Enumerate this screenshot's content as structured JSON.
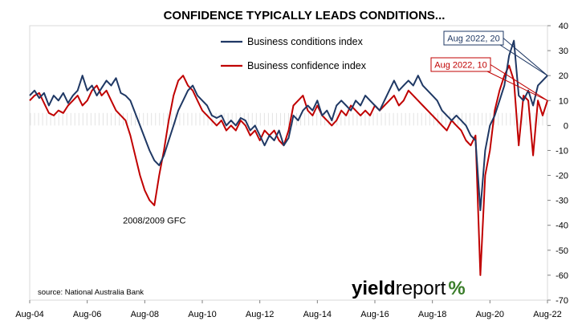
{
  "chart_data": {
    "type": "line",
    "title": "CONFIDENCE TYPICALLY LEADS CONDITIONS...",
    "xlabel": "",
    "ylabel": "",
    "x_tick_labels": [
      "Aug-04",
      "Aug-06",
      "Aug-08",
      "Aug-10",
      "Aug-12",
      "Aug-14",
      "Aug-16",
      "Aug-18",
      "Aug-20",
      "Aug-22"
    ],
    "y_tick_labels": [
      "40",
      "30",
      "20",
      "10",
      "0",
      "-10",
      "-20",
      "-30",
      "-40",
      "-50",
      "-60",
      "-70"
    ],
    "ylim": [
      -70,
      40
    ],
    "xlim": [
      "2004-08",
      "2022-08"
    ],
    "grid": false,
    "legend_position": "top-center",
    "series": [
      {
        "name": "Business conditions index",
        "color": "#1f3864",
        "points": [
          [
            "2004-08",
            12
          ],
          [
            "2004-10",
            14
          ],
          [
            "2004-12",
            11
          ],
          [
            "2005-02",
            13
          ],
          [
            "2005-04",
            8
          ],
          [
            "2005-06",
            12
          ],
          [
            "2005-08",
            10
          ],
          [
            "2005-10",
            13
          ],
          [
            "2005-12",
            9
          ],
          [
            "2006-02",
            12
          ],
          [
            "2006-04",
            14
          ],
          [
            "2006-06",
            20
          ],
          [
            "2006-08",
            14
          ],
          [
            "2006-10",
            16
          ],
          [
            "2006-12",
            12
          ],
          [
            "2007-02",
            15
          ],
          [
            "2007-04",
            18
          ],
          [
            "2007-06",
            16
          ],
          [
            "2007-08",
            19
          ],
          [
            "2007-10",
            13
          ],
          [
            "2007-12",
            12
          ],
          [
            "2008-02",
            10
          ],
          [
            "2008-04",
            5
          ],
          [
            "2008-06",
            0
          ],
          [
            "2008-08",
            -5
          ],
          [
            "2008-10",
            -10
          ],
          [
            "2008-12",
            -14
          ],
          [
            "2009-02",
            -16
          ],
          [
            "2009-04",
            -12
          ],
          [
            "2009-06",
            -6
          ],
          [
            "2009-08",
            0
          ],
          [
            "2009-10",
            6
          ],
          [
            "2009-12",
            10
          ],
          [
            "2010-02",
            14
          ],
          [
            "2010-04",
            16
          ],
          [
            "2010-06",
            12
          ],
          [
            "2010-08",
            10
          ],
          [
            "2010-10",
            8
          ],
          [
            "2010-12",
            4
          ],
          [
            "2011-02",
            3
          ],
          [
            "2011-04",
            4
          ],
          [
            "2011-06",
            0
          ],
          [
            "2011-08",
            2
          ],
          [
            "2011-10",
            0
          ],
          [
            "2011-12",
            3
          ],
          [
            "2012-02",
            2
          ],
          [
            "2012-04",
            -2
          ],
          [
            "2012-06",
            0
          ],
          [
            "2012-08",
            -4
          ],
          [
            "2012-10",
            -8
          ],
          [
            "2012-12",
            -4
          ],
          [
            "2013-02",
            -6
          ],
          [
            "2013-04",
            -2
          ],
          [
            "2013-06",
            -8
          ],
          [
            "2013-08",
            -5
          ],
          [
            "2013-10",
            4
          ],
          [
            "2013-12",
            2
          ],
          [
            "2014-02",
            6
          ],
          [
            "2014-04",
            8
          ],
          [
            "2014-06",
            6
          ],
          [
            "2014-08",
            10
          ],
          [
            "2014-10",
            4
          ],
          [
            "2014-12",
            6
          ],
          [
            "2015-02",
            2
          ],
          [
            "2015-04",
            8
          ],
          [
            "2015-06",
            10
          ],
          [
            "2015-08",
            8
          ],
          [
            "2015-10",
            6
          ],
          [
            "2015-12",
            10
          ],
          [
            "2016-02",
            8
          ],
          [
            "2016-04",
            12
          ],
          [
            "2016-06",
            10
          ],
          [
            "2016-08",
            8
          ],
          [
            "2016-10",
            6
          ],
          [
            "2016-12",
            10
          ],
          [
            "2017-02",
            14
          ],
          [
            "2017-04",
            18
          ],
          [
            "2017-06",
            14
          ],
          [
            "2017-08",
            16
          ],
          [
            "2017-10",
            18
          ],
          [
            "2017-12",
            16
          ],
          [
            "2018-02",
            20
          ],
          [
            "2018-04",
            16
          ],
          [
            "2018-06",
            14
          ],
          [
            "2018-08",
            12
          ],
          [
            "2018-10",
            10
          ],
          [
            "2018-12",
            6
          ],
          [
            "2019-02",
            4
          ],
          [
            "2019-04",
            2
          ],
          [
            "2019-06",
            4
          ],
          [
            "2019-08",
            2
          ],
          [
            "2019-10",
            0
          ],
          [
            "2019-12",
            -4
          ],
          [
            "2020-02",
            -6
          ],
          [
            "2020-04",
            -34
          ],
          [
            "2020-06",
            -10
          ],
          [
            "2020-08",
            0
          ],
          [
            "2020-10",
            4
          ],
          [
            "2020-12",
            10
          ],
          [
            "2021-02",
            16
          ],
          [
            "2021-04",
            28
          ],
          [
            "2021-06",
            34
          ],
          [
            "2021-08",
            12
          ],
          [
            "2021-10",
            10
          ],
          [
            "2021-12",
            14
          ],
          [
            "2022-02",
            8
          ],
          [
            "2022-04",
            16
          ],
          [
            "2022-06",
            18
          ],
          [
            "2022-08",
            20
          ]
        ]
      },
      {
        "name": "Business confidence index",
        "color": "#c00000",
        "points": [
          [
            "2004-08",
            10
          ],
          [
            "2004-10",
            12
          ],
          [
            "2004-12",
            13
          ],
          [
            "2005-02",
            9
          ],
          [
            "2005-04",
            5
          ],
          [
            "2005-06",
            4
          ],
          [
            "2005-08",
            6
          ],
          [
            "2005-10",
            5
          ],
          [
            "2005-12",
            8
          ],
          [
            "2006-02",
            10
          ],
          [
            "2006-04",
            12
          ],
          [
            "2006-06",
            8
          ],
          [
            "2006-08",
            10
          ],
          [
            "2006-10",
            14
          ],
          [
            "2006-12",
            16
          ],
          [
            "2007-02",
            12
          ],
          [
            "2007-04",
            14
          ],
          [
            "2007-06",
            10
          ],
          [
            "2007-08",
            6
          ],
          [
            "2007-10",
            4
          ],
          [
            "2007-12",
            2
          ],
          [
            "2008-02",
            -4
          ],
          [
            "2008-04",
            -12
          ],
          [
            "2008-06",
            -20
          ],
          [
            "2008-08",
            -26
          ],
          [
            "2008-10",
            -30
          ],
          [
            "2008-12",
            -32
          ],
          [
            "2009-02",
            -20
          ],
          [
            "2009-04",
            -10
          ],
          [
            "2009-06",
            2
          ],
          [
            "2009-08",
            12
          ],
          [
            "2009-10",
            18
          ],
          [
            "2009-12",
            20
          ],
          [
            "2010-02",
            16
          ],
          [
            "2010-04",
            14
          ],
          [
            "2010-06",
            10
          ],
          [
            "2010-08",
            6
          ],
          [
            "2010-10",
            4
          ],
          [
            "2010-12",
            2
          ],
          [
            "2011-02",
            0
          ],
          [
            "2011-04",
            2
          ],
          [
            "2011-06",
            -2
          ],
          [
            "2011-08",
            0
          ],
          [
            "2011-10",
            -2
          ],
          [
            "2011-12",
            2
          ],
          [
            "2012-02",
            0
          ],
          [
            "2012-04",
            -4
          ],
          [
            "2012-06",
            -2
          ],
          [
            "2012-08",
            -6
          ],
          [
            "2012-10",
            -2
          ],
          [
            "2012-12",
            -4
          ],
          [
            "2013-02",
            -2
          ],
          [
            "2013-04",
            -6
          ],
          [
            "2013-06",
            -8
          ],
          [
            "2013-08",
            -2
          ],
          [
            "2013-10",
            8
          ],
          [
            "2013-12",
            10
          ],
          [
            "2014-02",
            12
          ],
          [
            "2014-04",
            6
          ],
          [
            "2014-06",
            4
          ],
          [
            "2014-08",
            8
          ],
          [
            "2014-10",
            4
          ],
          [
            "2014-12",
            2
          ],
          [
            "2015-02",
            0
          ],
          [
            "2015-04",
            2
          ],
          [
            "2015-06",
            6
          ],
          [
            "2015-08",
            4
          ],
          [
            "2015-10",
            8
          ],
          [
            "2015-12",
            6
          ],
          [
            "2016-02",
            4
          ],
          [
            "2016-04",
            6
          ],
          [
            "2016-06",
            4
          ],
          [
            "2016-08",
            8
          ],
          [
            "2016-10",
            6
          ],
          [
            "2016-12",
            8
          ],
          [
            "2017-02",
            10
          ],
          [
            "2017-04",
            12
          ],
          [
            "2017-06",
            8
          ],
          [
            "2017-08",
            10
          ],
          [
            "2017-10",
            14
          ],
          [
            "2017-12",
            12
          ],
          [
            "2018-02",
            10
          ],
          [
            "2018-04",
            8
          ],
          [
            "2018-06",
            6
          ],
          [
            "2018-08",
            4
          ],
          [
            "2018-10",
            2
          ],
          [
            "2018-12",
            0
          ],
          [
            "2019-02",
            -2
          ],
          [
            "2019-04",
            2
          ],
          [
            "2019-06",
            0
          ],
          [
            "2019-08",
            -2
          ],
          [
            "2019-10",
            -6
          ],
          [
            "2019-12",
            -8
          ],
          [
            "2020-02",
            -4
          ],
          [
            "2020-04",
            -60
          ],
          [
            "2020-06",
            -20
          ],
          [
            "2020-08",
            -10
          ],
          [
            "2020-10",
            6
          ],
          [
            "2020-12",
            14
          ],
          [
            "2021-02",
            20
          ],
          [
            "2021-04",
            24
          ],
          [
            "2021-06",
            18
          ],
          [
            "2021-08",
            -8
          ],
          [
            "2021-10",
            12
          ],
          [
            "2021-12",
            10
          ],
          [
            "2022-02",
            -12
          ],
          [
            "2022-04",
            10
          ],
          [
            "2022-06",
            4
          ],
          [
            "2022-08",
            10
          ]
        ]
      }
    ],
    "annotations": [
      {
        "text": "Aug 2022, 20",
        "series": "Business conditions index",
        "x": "2022-08",
        "y": 20,
        "color": "#1f3864"
      },
      {
        "text": "Aug 2022, 10",
        "series": "Business confidence index",
        "x": "2022-08",
        "y": 10,
        "color": "#c00000"
      },
      {
        "text": "2008/2009 GFC",
        "x": "2008-12",
        "y": -38
      }
    ],
    "source": "source: National Australia Bank",
    "branding": {
      "part1": "yield",
      "part2": "report",
      "mark": "%",
      "part1_color": "#000000",
      "part2_color": "#000000",
      "mark_color": "#3a7d2a"
    }
  }
}
